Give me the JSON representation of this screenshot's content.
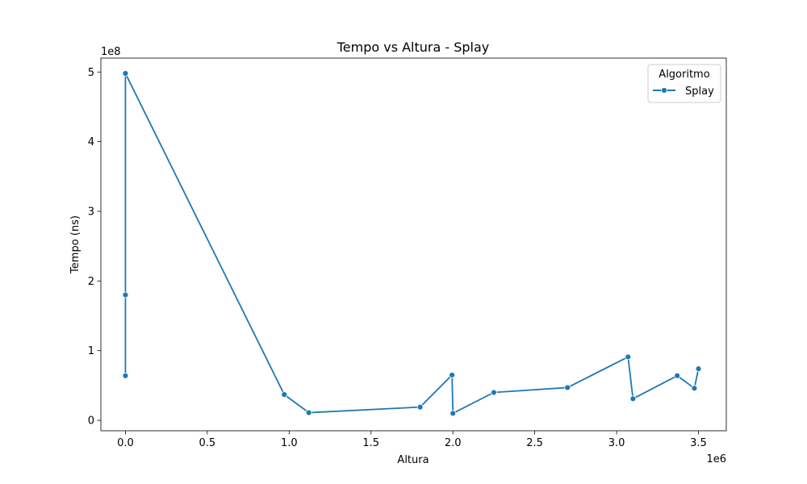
{
  "chart_data": {
    "type": "line",
    "title": "Tempo vs Altura - Splay",
    "xlabel": "Altura",
    "ylabel": "Tempo (ns)",
    "x_offset_label": "1e6",
    "y_offset_label": "1e8",
    "xlim": [
      -150000,
      3670000
    ],
    "ylim": [
      -15000000,
      520000000
    ],
    "x_ticks": [
      0,
      500000,
      1000000,
      1500000,
      2000000,
      2500000,
      3000000,
      3500000
    ],
    "x_tick_labels": [
      "0.0",
      "0.5",
      "1.0",
      "1.5",
      "2.0",
      "2.5",
      "3.0",
      "3.5"
    ],
    "y_ticks": [
      0,
      100000000,
      200000000,
      300000000,
      400000000,
      500000000
    ],
    "y_tick_labels": [
      "0",
      "1",
      "2",
      "3",
      "4",
      "5"
    ],
    "legend": {
      "title": "Algoritmo",
      "position": "top-right"
    },
    "grid": false,
    "series": [
      {
        "name": "Splay",
        "color": "#1f77b4",
        "marker": "circle",
        "x": [
          0,
          0,
          0,
          970000,
          1120000,
          1800000,
          1995000,
          2000000,
          2250000,
          2700000,
          3070000,
          3100000,
          3370000,
          3475000,
          3500000
        ],
        "y": [
          64000000,
          180000000,
          498000000,
          37000000,
          11000000,
          19000000,
          65000000,
          10000000,
          40000000,
          47000000,
          91000000,
          31000000,
          64000000,
          46000000,
          74000000
        ]
      }
    ]
  }
}
